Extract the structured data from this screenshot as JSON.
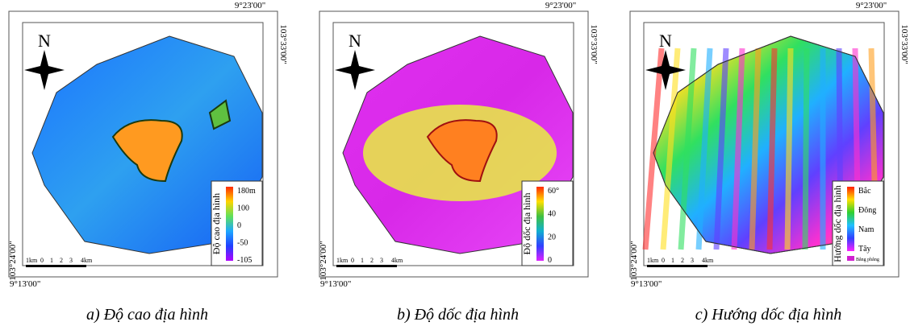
{
  "panels": [
    {
      "caption": "a) Độ cao địa hình",
      "legend_title": "Độ cao địa hình",
      "legend_labels": [
        "180m",
        "100",
        "0",
        "-50",
        "-105"
      ],
      "coords": {
        "top": "9°23'00\"",
        "right": "103°33'00\"",
        "left": "103°24'00\"",
        "bottom": "9°13'00\""
      },
      "north": "N",
      "scale": [
        "1km",
        "0",
        "1",
        "2",
        "3",
        "4km"
      ]
    },
    {
      "caption": "b) Độ dốc địa hình",
      "legend_title": "Độ dốc địa hình",
      "legend_labels": [
        "60°",
        "40",
        "20",
        "0"
      ],
      "coords": {
        "top": "9°23'00\"",
        "right": "103°33'00\"",
        "left": "103°24'00\"",
        "bottom": "9°13'00\""
      },
      "north": "N",
      "scale": [
        "1km",
        "0",
        "1",
        "2",
        "3",
        "4km"
      ]
    },
    {
      "caption": "c) Hướng dốc địa hình",
      "legend_title": "Hướng dốc địa hình",
      "legend_labels": [
        "Bắc",
        "Đông",
        "Nam",
        "Tây",
        "Bằng phẳng"
      ],
      "coords": {
        "top": "9°23'00\"",
        "right": "103°33'00\"",
        "left": "103°24'00\"",
        "bottom": "9°13'00\""
      },
      "north": "N",
      "scale": [
        "1km",
        "0",
        "1",
        "2",
        "3",
        "4km"
      ]
    }
  ]
}
